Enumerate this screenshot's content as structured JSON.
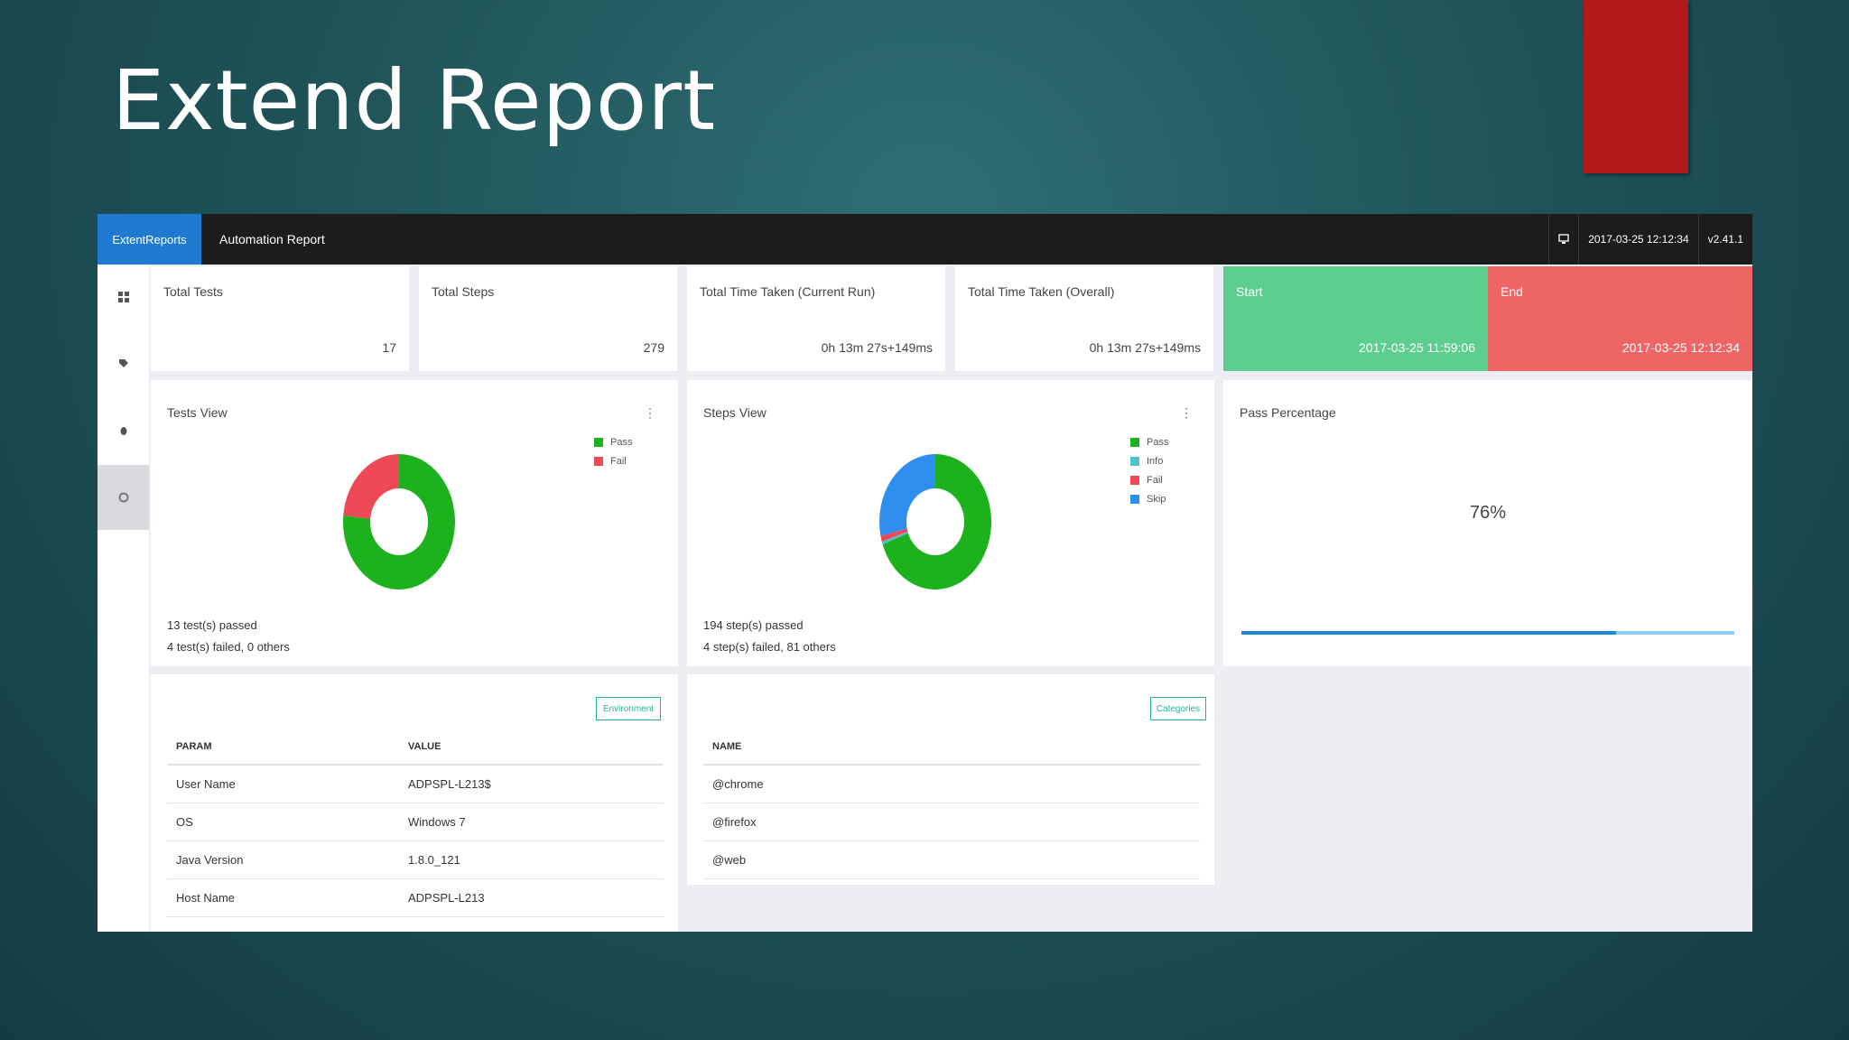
{
  "slide": {
    "title": "Extend Report"
  },
  "topbar": {
    "brand": "ExtentReports",
    "report_name": "Automation Report",
    "timestamp": "2017-03-25 12:12:34",
    "version": "v2.41.1"
  },
  "sidebar": {
    "items": [
      "dashboard-icon",
      "tag-icon",
      "bug-icon",
      "gear-icon"
    ]
  },
  "stats": {
    "total_tests": {
      "label": "Total Tests",
      "value": "17"
    },
    "total_steps": {
      "label": "Total Steps",
      "value": "279"
    },
    "time_current": {
      "label": "Total Time Taken (Current Run)",
      "value": "0h 13m 27s+149ms"
    },
    "time_overall": {
      "label": "Total Time Taken (Overall)",
      "value": "0h 13m 27s+149ms"
    },
    "start": {
      "label": "Start",
      "value": "2017-03-25 11:59:06",
      "color": "#5ccf8f"
    },
    "end": {
      "label": "End",
      "value": "2017-03-25 12:12:34",
      "color": "#ef6565"
    }
  },
  "tests_view": {
    "title": "Tests View",
    "summary_line1": "13 test(s) passed",
    "summary_line2": "4 test(s) failed, 0 others"
  },
  "steps_view": {
    "title": "Steps View",
    "summary_line1": "194 step(s) passed",
    "summary_line2": "4 step(s) failed, 81 others"
  },
  "pass_percentage": {
    "title": "Pass Percentage",
    "value": "76%",
    "fraction": 0.76
  },
  "environment": {
    "button": "Environment",
    "headers": [
      "PARAM",
      "VALUE"
    ],
    "rows": [
      [
        "User Name",
        "ADPSPL-L213$"
      ],
      [
        "OS",
        "Windows 7"
      ],
      [
        "Java Version",
        "1.8.0_121"
      ],
      [
        "Host Name",
        "ADPSPL-L213"
      ]
    ]
  },
  "categories": {
    "button": "Categories",
    "header": "NAME",
    "rows": [
      "@chrome",
      "@firefox",
      "@web"
    ]
  },
  "chart_data": [
    {
      "type": "pie",
      "title": "Tests View",
      "categories": [
        "Pass",
        "Fail"
      ],
      "values": [
        13,
        4
      ],
      "colors": [
        "#1db21d",
        "#ee4a55"
      ],
      "legend": "top-right"
    },
    {
      "type": "pie",
      "title": "Steps View",
      "categories": [
        "Pass",
        "Info",
        "Fail",
        "Skip"
      ],
      "values": [
        194,
        2,
        4,
        79
      ],
      "colors": [
        "#1db21d",
        "#4fc1c9",
        "#ee4a55",
        "#2f8fee"
      ],
      "legend": "top-right"
    }
  ]
}
